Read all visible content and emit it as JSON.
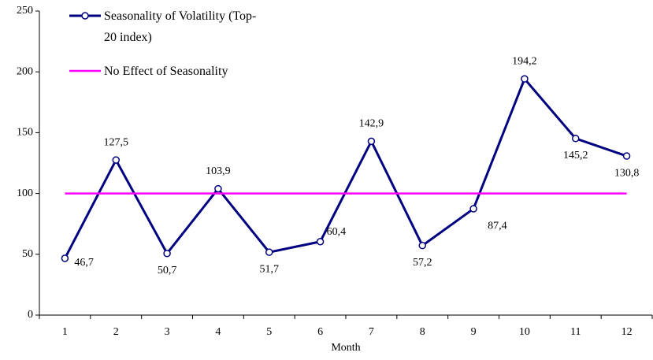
{
  "chart_data": {
    "type": "line",
    "x_label": "Month",
    "categories": [
      "1",
      "2",
      "3",
      "4",
      "5",
      "6",
      "7",
      "8",
      "9",
      "10",
      "11",
      "12"
    ],
    "series": [
      {
        "name": "Seasonality of Volatility (Top-20 index)",
        "color": "#000080",
        "values": [
          46.7,
          127.5,
          50.7,
          103.9,
          51.7,
          60.4,
          142.9,
          57.2,
          87.4,
          194.2,
          145.2,
          130.8
        ],
        "value_labels": [
          "46,7",
          "127,5",
          "50,7",
          "103,9",
          "51,7",
          "60,4",
          "142,9",
          "57,2",
          "87,4",
          "194,2",
          "145,2",
          "130,8"
        ],
        "markers": true
      },
      {
        "name": "No Effect of Seasonality",
        "color": "#ff00ff",
        "values": [
          100,
          100,
          100,
          100,
          100,
          100,
          100,
          100,
          100,
          100,
          100,
          100
        ],
        "markers": false
      }
    ],
    "ylim": [
      0,
      250
    ],
    "yticks": [
      0,
      50,
      100,
      150,
      200,
      250
    ],
    "grid": false,
    "legend": "top-left"
  }
}
